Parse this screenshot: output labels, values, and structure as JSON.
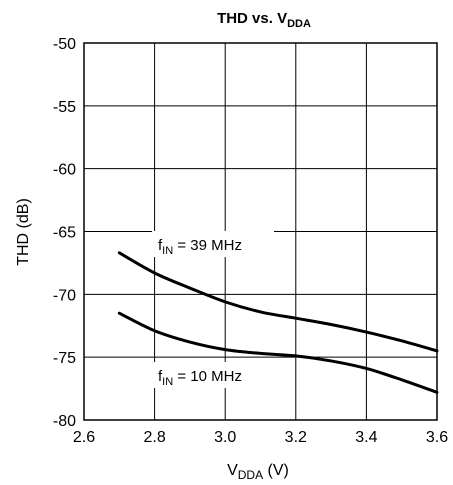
{
  "chart_data": {
    "type": "line",
    "title": {
      "main": "THD vs. V",
      "sub": "DDA"
    },
    "xlabel": {
      "main": "V",
      "sub": "DDA",
      "suffix": " (V)"
    },
    "ylabel": "THD (dB)",
    "xlim": [
      2.6,
      3.6
    ],
    "ylim": [
      -80,
      -50
    ],
    "xticks": [
      "2.6",
      "2.8",
      "3.0",
      "3.2",
      "3.4",
      "3.6"
    ],
    "yticks": [
      "-50",
      "-55",
      "-60",
      "-65",
      "-70",
      "-75",
      "-80"
    ],
    "grid": true,
    "series": [
      {
        "name": {
          "pre": "f",
          "sub": "IN",
          "post": " = 39 MHz"
        },
        "x": [
          2.7,
          2.8,
          2.9,
          3.0,
          3.1,
          3.2,
          3.3,
          3.4,
          3.5,
          3.6
        ],
        "y": [
          -66.7,
          -68.3,
          -69.5,
          -70.6,
          -71.4,
          -71.9,
          -72.4,
          -73.0,
          -73.7,
          -74.5
        ]
      },
      {
        "name": {
          "pre": "f",
          "sub": "IN",
          "post": " = 10 MHz"
        },
        "x": [
          2.7,
          2.8,
          2.9,
          3.0,
          3.1,
          3.2,
          3.3,
          3.4,
          3.5,
          3.6
        ],
        "y": [
          -71.5,
          -72.9,
          -73.8,
          -74.4,
          -74.7,
          -74.9,
          -75.3,
          -75.9,
          -76.8,
          -77.8
        ]
      }
    ]
  }
}
